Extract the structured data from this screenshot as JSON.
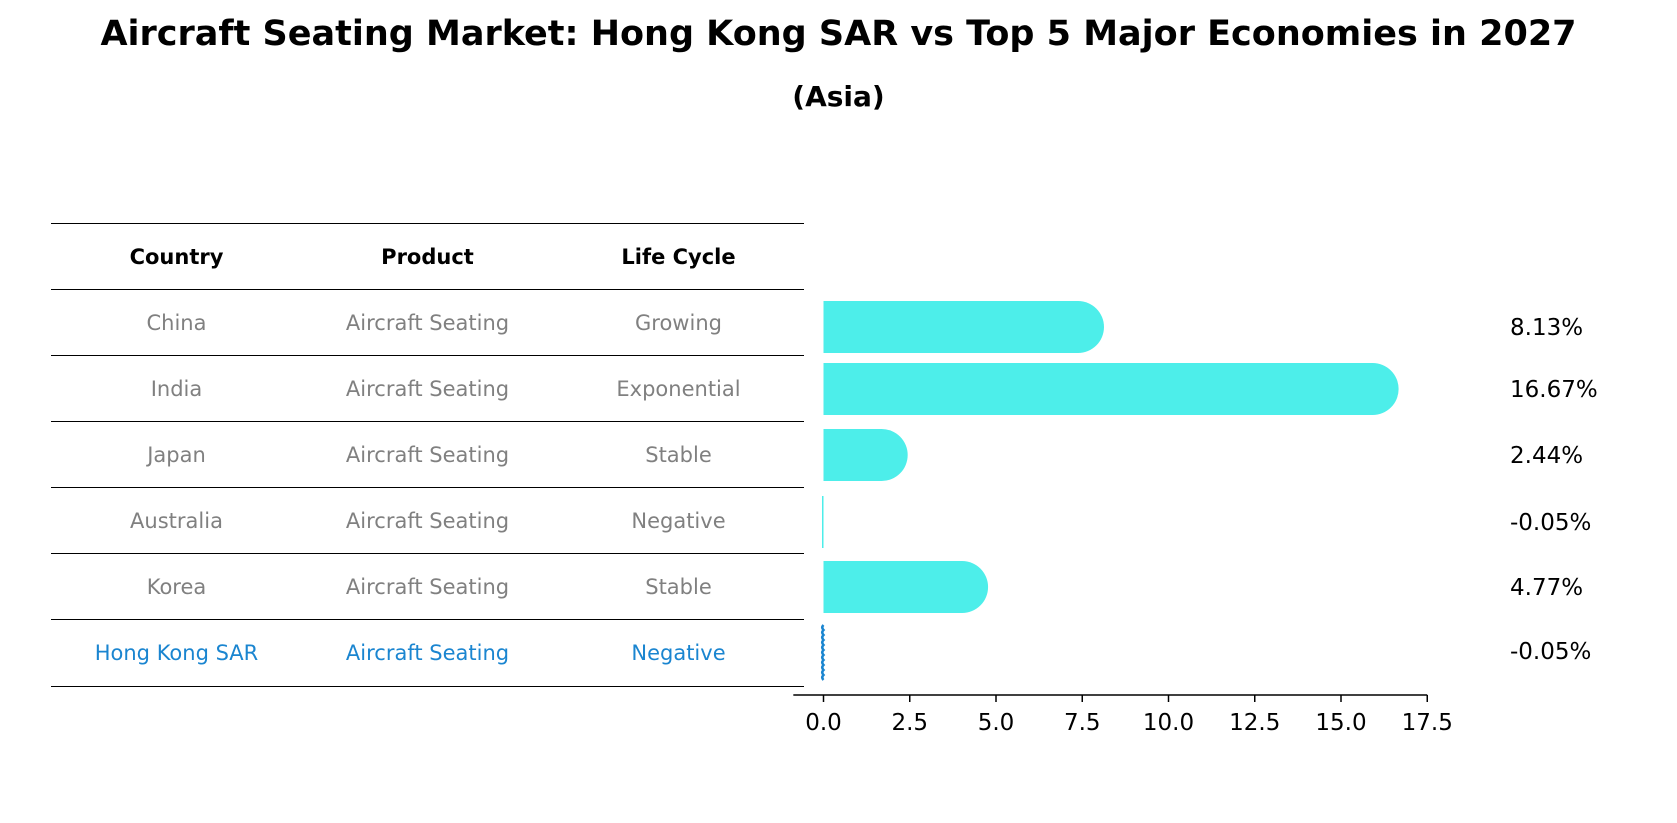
{
  "title": "Aircraft Seating Market: Hong Kong SAR vs Top 5 Major Economies in 2027",
  "subtitle": "(Asia)",
  "table": {
    "headers": [
      "Country",
      "Product",
      "Life Cycle"
    ],
    "rows": [
      {
        "country": "China",
        "product": "Aircraft Seating",
        "life_cycle": "Growing"
      },
      {
        "country": "India",
        "product": "Aircraft Seating",
        "life_cycle": "Exponential"
      },
      {
        "country": "Japan",
        "product": "Aircraft Seating",
        "life_cycle": "Stable"
      },
      {
        "country": "Australia",
        "product": "Aircraft Seating",
        "life_cycle": "Negative"
      },
      {
        "country": "Korea",
        "product": "Aircraft Seating",
        "life_cycle": "Stable"
      },
      {
        "country": "Hong Kong SAR",
        "product": "Aircraft Seating",
        "life_cycle": "Negative"
      }
    ],
    "highlight_row": 5
  },
  "colors": {
    "bar": "#4deeea",
    "highlight": "#1a85d0",
    "muted_text": "#808080",
    "axis": "#000000"
  },
  "chart_data": {
    "type": "bar",
    "orientation": "horizontal",
    "categories": [
      "China",
      "India",
      "Japan",
      "Australia",
      "Korea",
      "Hong Kong SAR"
    ],
    "values": [
      8.13,
      16.67,
      2.44,
      -0.05,
      4.77,
      -0.05
    ],
    "value_labels": [
      "8.13%",
      "16.67%",
      "2.44%",
      "-0.05%",
      "4.77%",
      "-0.05%"
    ],
    "xlim": [
      -0.875,
      17.5
    ],
    "xticks": [
      0.0,
      2.5,
      5.0,
      7.5,
      10.0,
      12.5,
      15.0,
      17.5
    ],
    "xtick_labels": [
      "0.0",
      "2.5",
      "5.0",
      "7.5",
      "10.0",
      "12.5",
      "15.0",
      "17.5"
    ],
    "grid": false
  }
}
